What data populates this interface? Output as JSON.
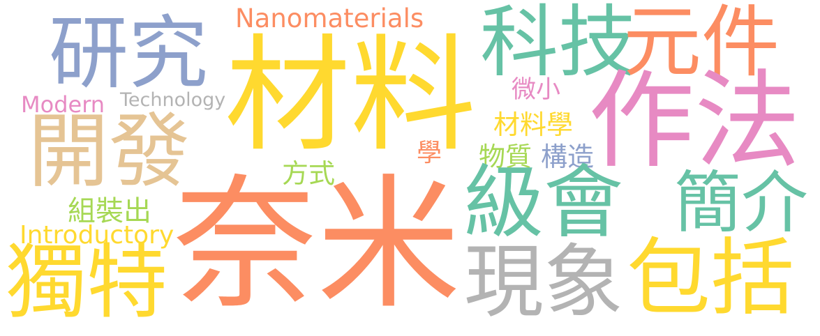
{
  "words": [
    {
      "text": "Nanomaterials",
      "color": "#fc8d62"
    },
    {
      "text": "研究",
      "color": "#8da0cb"
    },
    {
      "text": "材料",
      "color": "#ffd92f"
    },
    {
      "text": "科技",
      "color": "#66c2a5"
    },
    {
      "text": "元件",
      "color": "#fc8d62"
    },
    {
      "text": "Modern",
      "color": "#e78ac3"
    },
    {
      "text": "Technology",
      "color": "#b3b3b3"
    },
    {
      "text": "微小",
      "color": "#e78ac3"
    },
    {
      "text": "作法",
      "color": "#e78ac3"
    },
    {
      "text": "開發",
      "color": "#e5c494"
    },
    {
      "text": "材料學",
      "color": "#ffd92f"
    },
    {
      "text": "學",
      "color": "#fc8d62"
    },
    {
      "text": "物質",
      "color": "#a6d854"
    },
    {
      "text": "構造",
      "color": "#8da0cb"
    },
    {
      "text": "方式",
      "color": "#a6d854"
    },
    {
      "text": "級會",
      "color": "#66c2a5"
    },
    {
      "text": "簡介",
      "color": "#66c2a5"
    },
    {
      "text": "組裝出",
      "color": "#a6d854"
    },
    {
      "text": "Introductory",
      "color": "#ffd92f"
    },
    {
      "text": "奈米",
      "color": "#fc8d62"
    },
    {
      "text": "獨特",
      "color": "#ffd92f"
    },
    {
      "text": "現象",
      "color": "#b3b3b3"
    },
    {
      "text": "包括",
      "color": "#ffd92f"
    }
  ]
}
